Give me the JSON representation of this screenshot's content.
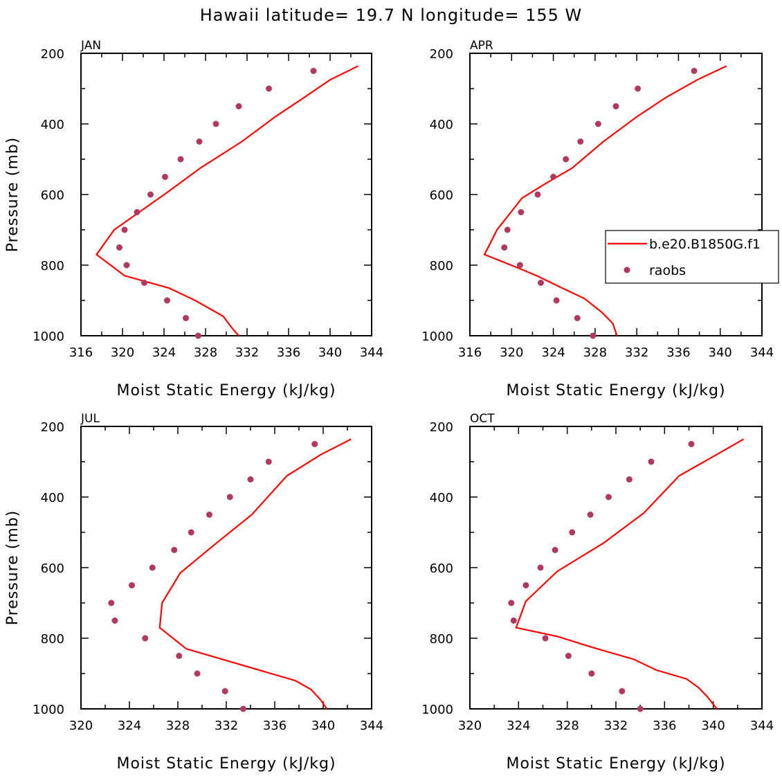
{
  "title": "Hawaii  latitude= 19.7 N longitude= 155 W",
  "colors": {
    "model": "#ff0000",
    "obs": "#b03a5f",
    "axis": "#000000"
  },
  "legend": {
    "entries": [
      {
        "name": "b.e20.B1850G.f1",
        "style": "line"
      },
      {
        "name": "raobs",
        "style": "dot"
      }
    ]
  },
  "chart_data": [
    {
      "type": "line",
      "panel": "JAN",
      "xlabel": "Moist Static Energy (kJ/kg)",
      "ylabel": "Pressure (mb)",
      "xlim": [
        316,
        344
      ],
      "xticks": [
        "316",
        "320",
        "324",
        "328",
        "332",
        "336",
        "340",
        "344"
      ],
      "ylim": [
        200,
        1000
      ],
      "yreversed": true,
      "yticks": [
        "200",
        "400",
        "600",
        "800",
        "1000"
      ],
      "series": [
        {
          "name": "b.e20.B1850G.f1",
          "style": "line",
          "points": [
            [
              342.7,
              236
            ],
            [
              340.0,
              275
            ],
            [
              337.5,
              325
            ],
            [
              334.7,
              380
            ],
            [
              331.5,
              450
            ],
            [
              327.5,
              525
            ],
            [
              324.5,
              590
            ],
            [
              319.2,
              700
            ],
            [
              317.5,
              770
            ],
            [
              320.2,
              830
            ],
            [
              324.5,
              865
            ],
            [
              327.0,
              900
            ],
            [
              329.7,
              945
            ],
            [
              330.6,
              980
            ],
            [
              331.2,
              1000
            ]
          ]
        },
        {
          "name": "raobs",
          "style": "dot",
          "points": [
            [
              338.4,
              250
            ],
            [
              334.1,
              300
            ],
            [
              331.2,
              350
            ],
            [
              329.0,
              400
            ],
            [
              327.4,
              450
            ],
            [
              325.6,
              500
            ],
            [
              324.1,
              550
            ],
            [
              322.7,
              600
            ],
            [
              321.4,
              650
            ],
            [
              320.2,
              700
            ],
            [
              319.7,
              750
            ],
            [
              320.4,
              800
            ],
            [
              322.1,
              850
            ],
            [
              324.3,
              900
            ],
            [
              326.1,
              950
            ],
            [
              327.3,
              1000
            ]
          ]
        }
      ]
    },
    {
      "type": "line",
      "panel": "APR",
      "xlabel": "Moist Static Energy (kJ/kg)",
      "ylabel": "",
      "xlim": [
        316,
        344
      ],
      "xticks": [
        "316",
        "320",
        "324",
        "328",
        "332",
        "336",
        "340",
        "344"
      ],
      "ylim": [
        200,
        1000
      ],
      "yreversed": true,
      "yticks": [
        "200",
        "400",
        "600",
        "800",
        "1000"
      ],
      "series": [
        {
          "name": "b.e20.B1850G.f1",
          "style": "line",
          "points": [
            [
              340.6,
              236
            ],
            [
              337.8,
              275
            ],
            [
              334.8,
              325
            ],
            [
              332.0,
              380
            ],
            [
              328.8,
              450
            ],
            [
              325.8,
              525
            ],
            [
              323.2,
              570
            ],
            [
              321.0,
              610
            ],
            [
              318.6,
              700
            ],
            [
              317.4,
              770
            ],
            [
              320.8,
              810
            ],
            [
              322.4,
              830
            ],
            [
              324.5,
              860
            ],
            [
              327.0,
              895
            ],
            [
              328.7,
              935
            ],
            [
              329.7,
              965
            ],
            [
              330.1,
              1000
            ]
          ]
        },
        {
          "name": "raobs",
          "style": "dot",
          "points": [
            [
              337.5,
              250
            ],
            [
              332.1,
              300
            ],
            [
              330.0,
              350
            ],
            [
              328.3,
              400
            ],
            [
              326.6,
              450
            ],
            [
              325.2,
              500
            ],
            [
              324.0,
              550
            ],
            [
              322.5,
              600
            ],
            [
              320.9,
              650
            ],
            [
              319.6,
              700
            ],
            [
              319.3,
              750
            ],
            [
              320.8,
              800
            ],
            [
              322.8,
              850
            ],
            [
              324.3,
              900
            ],
            [
              326.3,
              950
            ],
            [
              327.8,
              1000
            ]
          ]
        }
      ]
    },
    {
      "type": "line",
      "panel": "JUL",
      "xlabel": "Moist Static Energy (kJ/kg)",
      "ylabel": "Pressure (mb)",
      "xlim": [
        320,
        344
      ],
      "xticks": [
        "320",
        "324",
        "328",
        "332",
        "336",
        "340",
        "344"
      ],
      "ylim": [
        200,
        1000
      ],
      "yreversed": true,
      "yticks": [
        "200",
        "400",
        "600",
        "800",
        "1000"
      ],
      "series": [
        {
          "name": "b.e20.B1850G.f1",
          "style": "line",
          "points": [
            [
              342.3,
              236
            ],
            [
              339.8,
              280
            ],
            [
              337.0,
              340
            ],
            [
              334.1,
              450
            ],
            [
              331.2,
              530
            ],
            [
              328.2,
              615
            ],
            [
              326.7,
              700
            ],
            [
              326.5,
              770
            ],
            [
              328.7,
              830
            ],
            [
              331.7,
              860
            ],
            [
              335.2,
              895
            ],
            [
              337.7,
              920
            ],
            [
              339.0,
              945
            ],
            [
              339.8,
              975
            ],
            [
              340.3,
              1000
            ]
          ]
        },
        {
          "name": "raobs",
          "style": "dot",
          "points": [
            [
              339.3,
              250
            ],
            [
              335.5,
              300
            ],
            [
              334.0,
              350
            ],
            [
              332.3,
              400
            ],
            [
              330.6,
              450
            ],
            [
              329.1,
              500
            ],
            [
              327.7,
              550
            ],
            [
              325.9,
              600
            ],
            [
              324.2,
              650
            ],
            [
              322.5,
              700
            ],
            [
              322.8,
              750
            ],
            [
              325.3,
              800
            ],
            [
              328.1,
              850
            ],
            [
              329.6,
              900
            ],
            [
              331.9,
              950
            ],
            [
              333.4,
              1000
            ]
          ]
        }
      ]
    },
    {
      "type": "line",
      "panel": "OCT",
      "xlabel": "Moist Static Energy (kJ/kg)",
      "ylabel": "",
      "xlim": [
        320,
        344
      ],
      "xticks": [
        "320",
        "324",
        "328",
        "332",
        "336",
        "340",
        "344"
      ],
      "ylim": [
        200,
        1000
      ],
      "yreversed": true,
      "yticks": [
        "200",
        "400",
        "600",
        "800",
        "1000"
      ],
      "series": [
        {
          "name": "b.e20.B1850G.f1",
          "style": "line",
          "points": [
            [
              342.5,
              236
            ],
            [
              340.0,
              285
            ],
            [
              337.2,
              340
            ],
            [
              334.3,
              445
            ],
            [
              331.0,
              530
            ],
            [
              327.2,
              610
            ],
            [
              324.6,
              695
            ],
            [
              323.8,
              770
            ],
            [
              327.2,
              795
            ],
            [
              330.0,
              825
            ],
            [
              333.5,
              860
            ],
            [
              335.3,
              890
            ],
            [
              337.8,
              915
            ],
            [
              338.8,
              940
            ],
            [
              339.5,
              965
            ],
            [
              340.3,
              1000
            ]
          ]
        },
        {
          "name": "raobs",
          "style": "dot",
          "points": [
            [
              338.2,
              250
            ],
            [
              334.9,
              300
            ],
            [
              333.1,
              350
            ],
            [
              331.4,
              400
            ],
            [
              329.9,
              450
            ],
            [
              328.4,
              500
            ],
            [
              327.0,
              550
            ],
            [
              325.8,
              600
            ],
            [
              324.6,
              650
            ],
            [
              323.4,
              700
            ],
            [
              323.6,
              750
            ],
            [
              326.2,
              800
            ],
            [
              328.1,
              850
            ],
            [
              330.0,
              900
            ],
            [
              332.5,
              950
            ],
            [
              334.0,
              1000
            ]
          ]
        }
      ]
    }
  ]
}
